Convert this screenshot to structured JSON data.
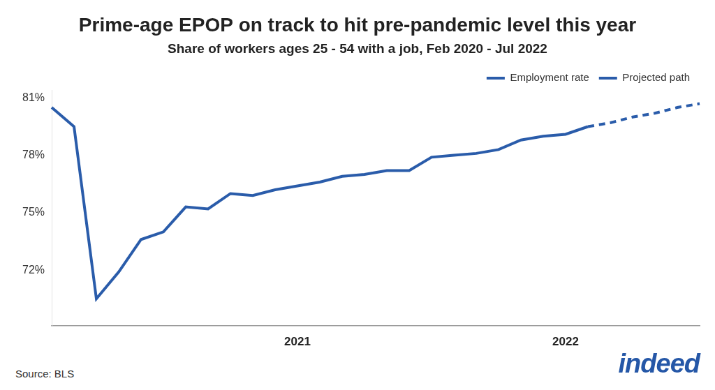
{
  "chart_data": {
    "type": "line",
    "title": "Prime-age EPOP on track to hit pre-pandemic level this year",
    "subtitle": "Share of workers ages 25 - 54 with a job, Feb 2020 - Jul 2022",
    "source": "Source: BLS",
    "brand": "indeed",
    "categories": [
      null,
      null,
      null,
      null,
      null,
      null,
      null,
      null,
      null,
      null,
      null,
      "2021",
      null,
      null,
      null,
      null,
      null,
      null,
      null,
      null,
      null,
      null,
      null,
      "2022",
      null,
      null,
      null,
      null,
      null,
      null
    ],
    "series": [
      {
        "name": "Employment rate",
        "color": "#2a5caa",
        "line_style": "solid",
        "values": [
          80.5,
          79.5,
          70.5,
          71.9,
          73.6,
          74.0,
          75.3,
          75.2,
          76.0,
          75.9,
          76.2,
          76.4,
          76.6,
          76.9,
          77.0,
          77.2,
          77.2,
          77.9,
          78.0,
          78.1,
          78.3,
          78.8,
          79.0,
          79.1,
          79.5,
          null,
          null,
          null,
          null,
          null
        ]
      },
      {
        "name": "Projected path",
        "color": "#2a5caa",
        "line_style": "dashed",
        "values": [
          null,
          null,
          null,
          null,
          null,
          null,
          null,
          null,
          null,
          null,
          null,
          null,
          null,
          null,
          null,
          null,
          null,
          null,
          null,
          null,
          null,
          null,
          null,
          null,
          79.5,
          79.7,
          80.0,
          80.2,
          80.5,
          80.7
        ]
      }
    ],
    "ylim": [
      69.1,
      81.4
    ],
    "yticks": [
      {
        "value": 72,
        "label": "72%"
      },
      {
        "value": 75,
        "label": "75%"
      },
      {
        "value": 78,
        "label": "78%"
      },
      {
        "value": 81,
        "label": "81%"
      }
    ],
    "grid": false,
    "legend": "top-right"
  }
}
